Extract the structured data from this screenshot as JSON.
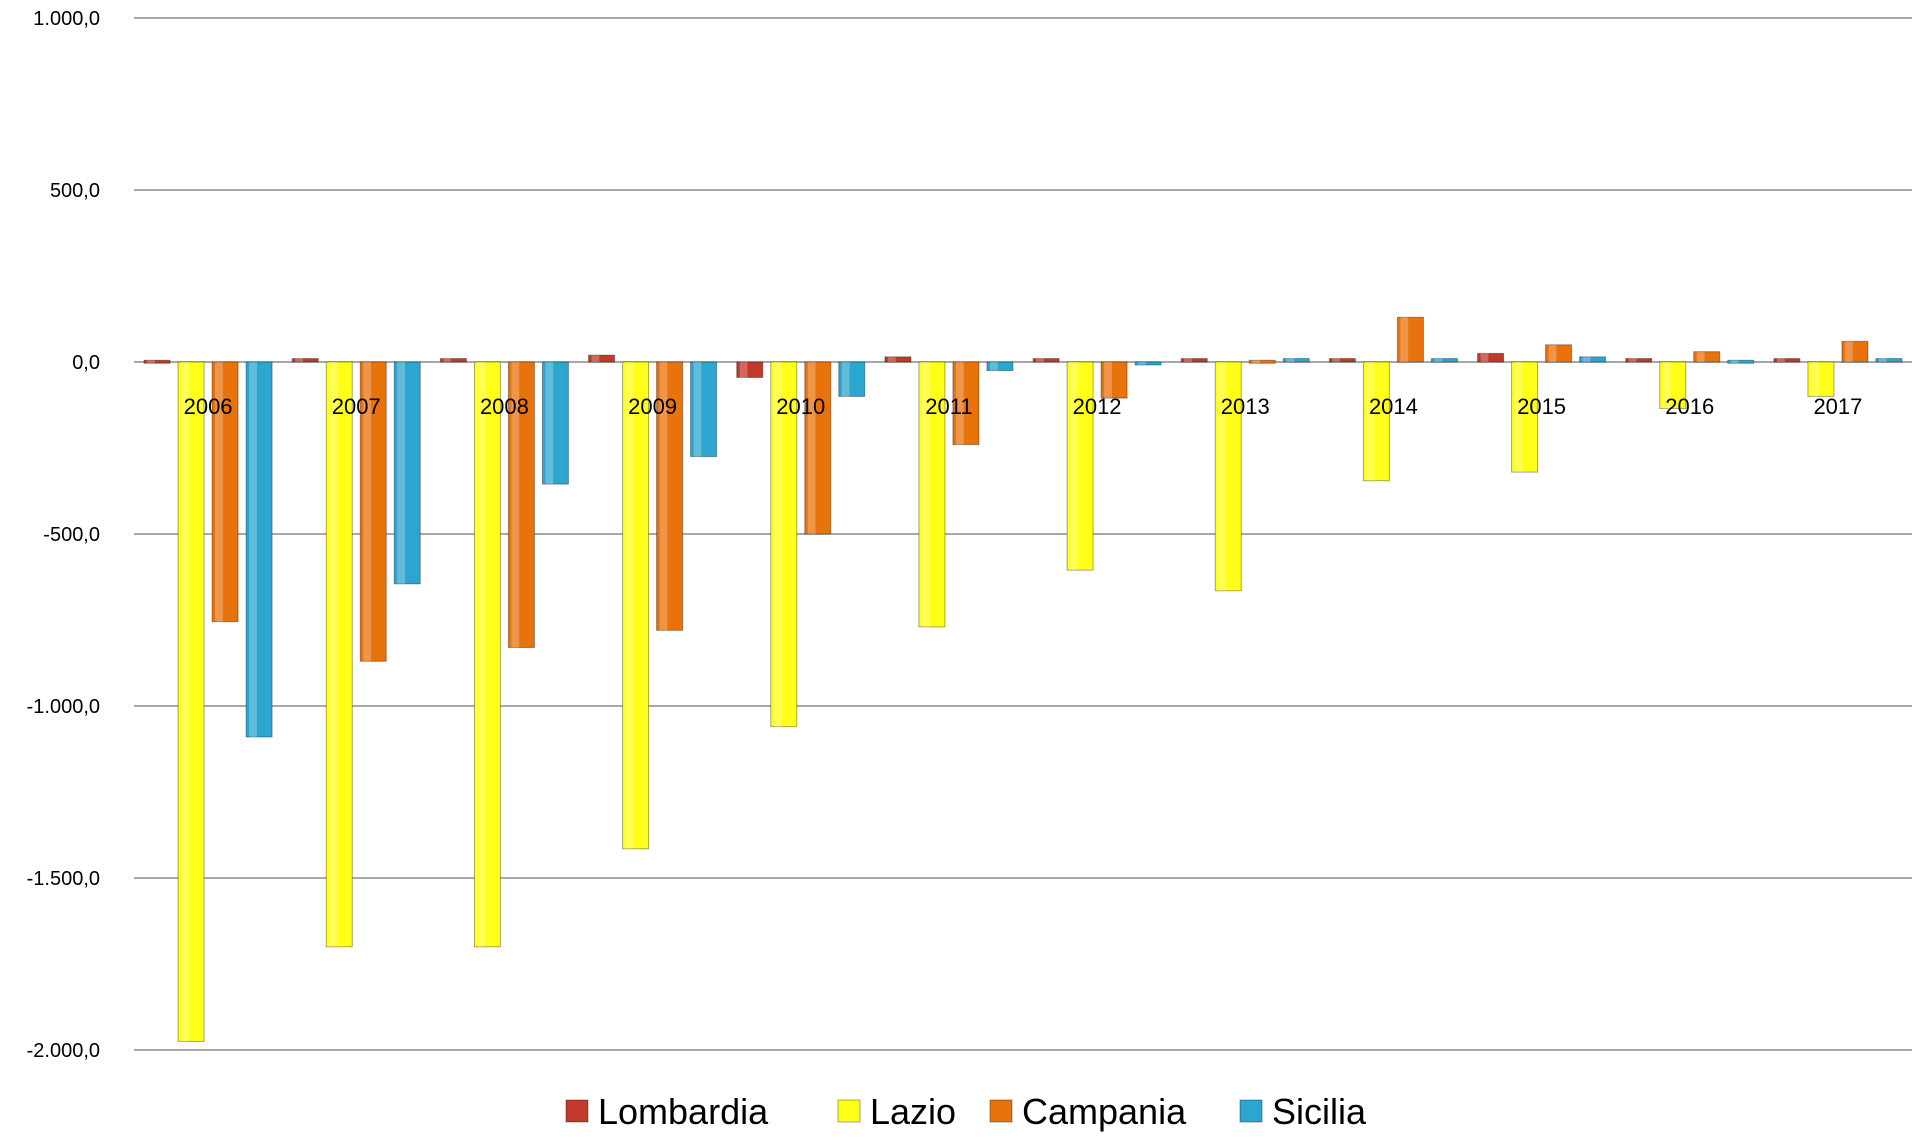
{
  "chart_data": {
    "type": "bar",
    "title": "",
    "xlabel": "",
    "ylabel": "",
    "ylim": [
      -2000,
      1000
    ],
    "yticks": [
      1000,
      500,
      0,
      -500,
      -1000,
      -1500,
      -2000
    ],
    "ytick_labels": [
      "1.000,0",
      "500,0",
      "0,0",
      "-500,0",
      "-1.000,0",
      "-1.500,0",
      "-2.000,0"
    ],
    "categories": [
      "2006",
      "2007",
      "2008",
      "2009",
      "2010",
      "2011",
      "2012",
      "2013",
      "2014",
      "2015",
      "2016",
      "2017"
    ],
    "grid": true,
    "legend_position": "bottom",
    "series": [
      {
        "name": "Lombardia",
        "color": "#c0392b",
        "values": [
          5,
          10,
          10,
          20,
          -45,
          15,
          10,
          10,
          10,
          25,
          10,
          10
        ]
      },
      {
        "name": "Lazio",
        "color": "#ffff1a",
        "values": [
          -1975,
          -1700,
          -1700,
          -1415,
          -1060,
          -770,
          -605,
          -665,
          -345,
          -320,
          -135,
          -100
        ]
      },
      {
        "name": "Campania",
        "color": "#e8720c",
        "values": [
          -755,
          -870,
          -830,
          -780,
          -500,
          -240,
          -105,
          5,
          130,
          50,
          30,
          60
        ]
      },
      {
        "name": "Sicilia",
        "color": "#2aa6cf",
        "values": [
          -1090,
          -645,
          -355,
          -275,
          -100,
          -25,
          -5,
          10,
          10,
          15,
          5,
          10
        ]
      }
    ]
  }
}
